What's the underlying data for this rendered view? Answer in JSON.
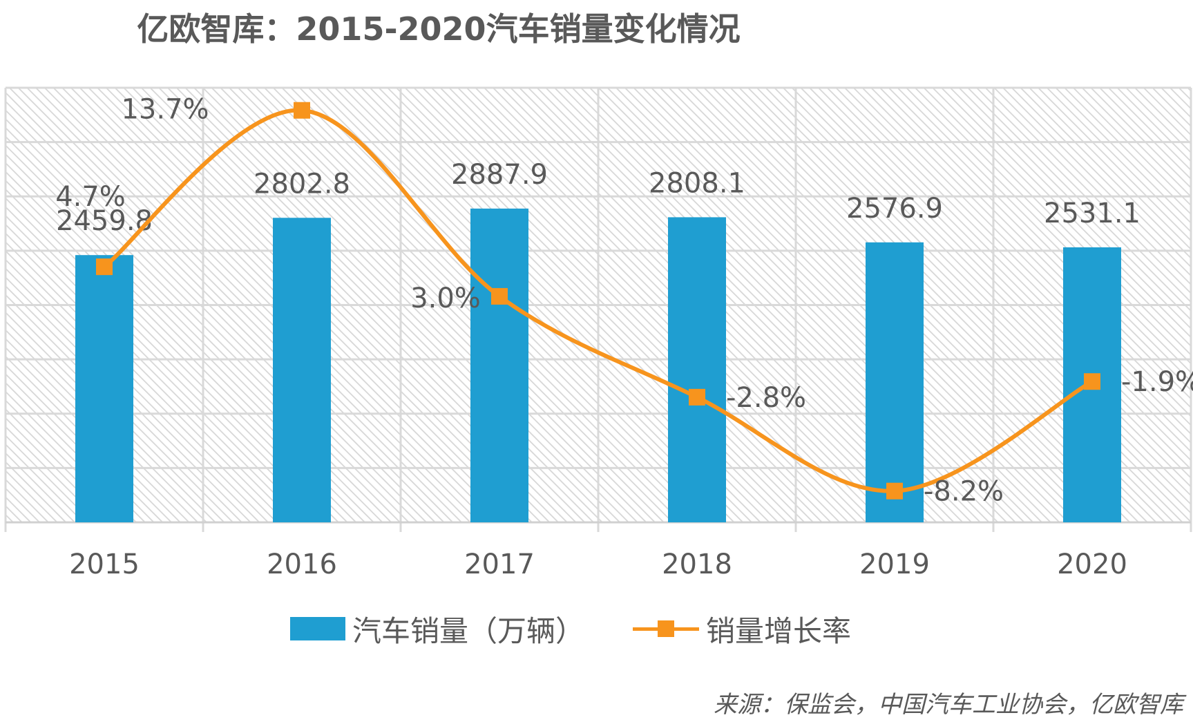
{
  "chart_data": {
    "type": "bar",
    "title": "亿欧智库：2015-2020汽车销量变化情况",
    "categories": [
      "2015",
      "2016",
      "2017",
      "2018",
      "2019",
      "2020"
    ],
    "series": [
      {
        "name": "汽车销量（万辆）",
        "type": "bar",
        "values": [
          2459.8,
          2802.8,
          2887.9,
          2808.1,
          2576.9,
          2531.1
        ],
        "labels": [
          "2459.8",
          "2802.8",
          "2887.9",
          "2808.1",
          "2576.9",
          "2531.1"
        ],
        "color": "#1f9ed1"
      },
      {
        "name": "销量增长率",
        "type": "line",
        "axis": "secondary",
        "marker": "square",
        "values": [
          4.7,
          13.7,
          3.0,
          -2.8,
          -8.2,
          -1.9
        ],
        "labels": [
          "4.7%",
          "13.7%",
          "3.0%",
          "-2.8%",
          "-8.2%",
          "-1.9%"
        ],
        "color": "#f7941d"
      }
    ],
    "xlabel": "",
    "ylabel": "",
    "grid": true,
    "legend": "bottom",
    "source": "来源：保监会，中国汽车工业协会，亿欧智库"
  }
}
